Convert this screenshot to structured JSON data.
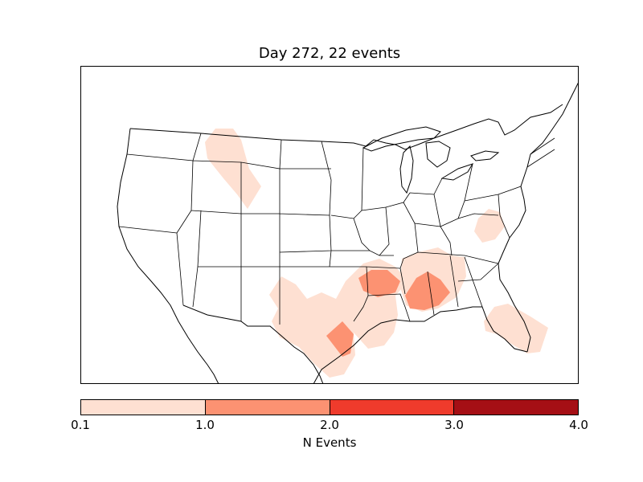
{
  "title": "Day 272, 22 events",
  "colorbar": {
    "label": "N Events",
    "ticks": [
      "0.1",
      "1.0",
      "2.0",
      "3.0",
      "4.0"
    ],
    "colors": [
      "#fee0d2",
      "#fc9272",
      "#ef3b2c",
      "#a50f15"
    ]
  },
  "map": {
    "line_color": "#000000",
    "background": "#ffffff",
    "region": "contiguous-united-states"
  }
}
